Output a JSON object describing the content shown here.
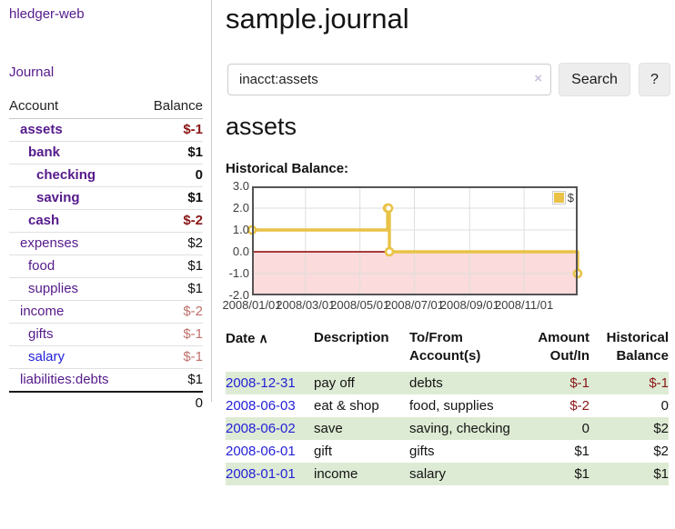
{
  "app": {
    "title": "hledger-web"
  },
  "nav": {
    "journal_label": "Journal"
  },
  "sidebar": {
    "header": {
      "account": "Account",
      "balance": "Balance"
    },
    "accounts": [
      {
        "name": "assets",
        "indent": 1,
        "bold": true,
        "link": "purple",
        "value": "$-1",
        "value_style": "neg"
      },
      {
        "name": "bank",
        "indent": 2,
        "bold": true,
        "link": "purple",
        "value": "$1",
        "value_style": "pos"
      },
      {
        "name": "checking",
        "indent": 3,
        "bold": true,
        "link": "purple",
        "value": "0",
        "value_style": "pos"
      },
      {
        "name": "saving",
        "indent": 3,
        "bold": true,
        "link": "purple",
        "value": "$1",
        "value_style": "pos"
      },
      {
        "name": "cash",
        "indent": 2,
        "bold": true,
        "link": "purple",
        "value": "$-2",
        "value_style": "neg"
      },
      {
        "name": "expenses",
        "indent": 1,
        "bold": false,
        "link": "purple",
        "value": "$2",
        "value_style": "pos"
      },
      {
        "name": "food",
        "indent": 2,
        "bold": false,
        "link": "purple",
        "value": "$1",
        "value_style": "pos"
      },
      {
        "name": "supplies",
        "indent": 2,
        "bold": false,
        "link": "purple",
        "value": "$1",
        "value_style": "pos"
      },
      {
        "name": "income",
        "indent": 1,
        "bold": false,
        "link": "purple",
        "value": "$-2",
        "value_style": "neg-soft"
      },
      {
        "name": "gifts",
        "indent": 2,
        "bold": false,
        "link": "purple",
        "value": "$-1",
        "value_style": "neg-soft"
      },
      {
        "name": "salary",
        "indent": 2,
        "bold": false,
        "link": "blue",
        "value": "$-1",
        "value_style": "neg-soft"
      },
      {
        "name": "liabilities:debts",
        "indent": 1,
        "bold": false,
        "link": "purple",
        "value": "$1",
        "value_style": "pos"
      }
    ],
    "total": "0"
  },
  "header": {
    "title": "sample.journal"
  },
  "search": {
    "value": "inacct:assets",
    "clear_icon": "×",
    "button_label": "Search",
    "help_label": "?"
  },
  "account_page": {
    "title": "assets",
    "chart_label": "Historical Balance:"
  },
  "chart_data": {
    "type": "line",
    "style": "step-after",
    "title": "Historical Balance",
    "series": [
      {
        "name": "$",
        "color": "#e9c247",
        "points": [
          [
            "2008-01-01",
            1
          ],
          [
            "2008-06-01",
            2
          ],
          [
            "2008-06-02",
            2
          ],
          [
            "2008-06-03",
            0
          ],
          [
            "2008-12-31",
            -1
          ]
        ]
      }
    ],
    "xlim": [
      "2008-01-01",
      "2008-12-31"
    ],
    "ylim": [
      -2,
      3
    ],
    "x_ticks": [
      "2008/01/01",
      "2008/03/01",
      "2008/05/01",
      "2008/07/01",
      "2008/09/01",
      "2008/11/01"
    ],
    "y_ticks": [
      3.0,
      2.0,
      1.0,
      0.0,
      -1.0,
      -2.0
    ],
    "legend": {
      "label": "$",
      "position": "top-right"
    },
    "grid": true,
    "negative_region_color": "#fbdbdb",
    "zero_line_color": "#8b0000",
    "grid_color": "#dedede",
    "border_color": "#545454",
    "marker_fill": "#ffffff"
  },
  "register": {
    "sort_icon": "∧",
    "columns": [
      {
        "label": "Date"
      },
      {
        "label": "Description"
      },
      {
        "label": "To/From\nAccount(s)"
      },
      {
        "label": "Amount\nOut/In"
      },
      {
        "label": "Historical\nBalance"
      }
    ],
    "rows": [
      {
        "date": "2008-12-31",
        "description": "pay off",
        "accounts": "debts",
        "amount": "$-1",
        "balance": "$-1"
      },
      {
        "date": "2008-06-03",
        "description": "eat & shop",
        "accounts": "food, supplies",
        "amount": "$-2",
        "balance": "0"
      },
      {
        "date": "2008-06-02",
        "description": "save",
        "accounts": "saving, checking",
        "amount": "0",
        "balance": "$2"
      },
      {
        "date": "2008-06-01",
        "description": "gift",
        "accounts": "gifts",
        "amount": "$1",
        "balance": "$2"
      },
      {
        "date": "2008-01-01",
        "description": "income",
        "accounts": "salary",
        "amount": "$1",
        "balance": "$1"
      }
    ]
  },
  "colors": {
    "accent_purple": "#551a8b",
    "link_blue": "#2421d8",
    "negative": "#8b1717",
    "negative_soft": "#c0706c",
    "row_stripe_green": "#deebd4",
    "chart_line_gold": "#e9c247"
  }
}
